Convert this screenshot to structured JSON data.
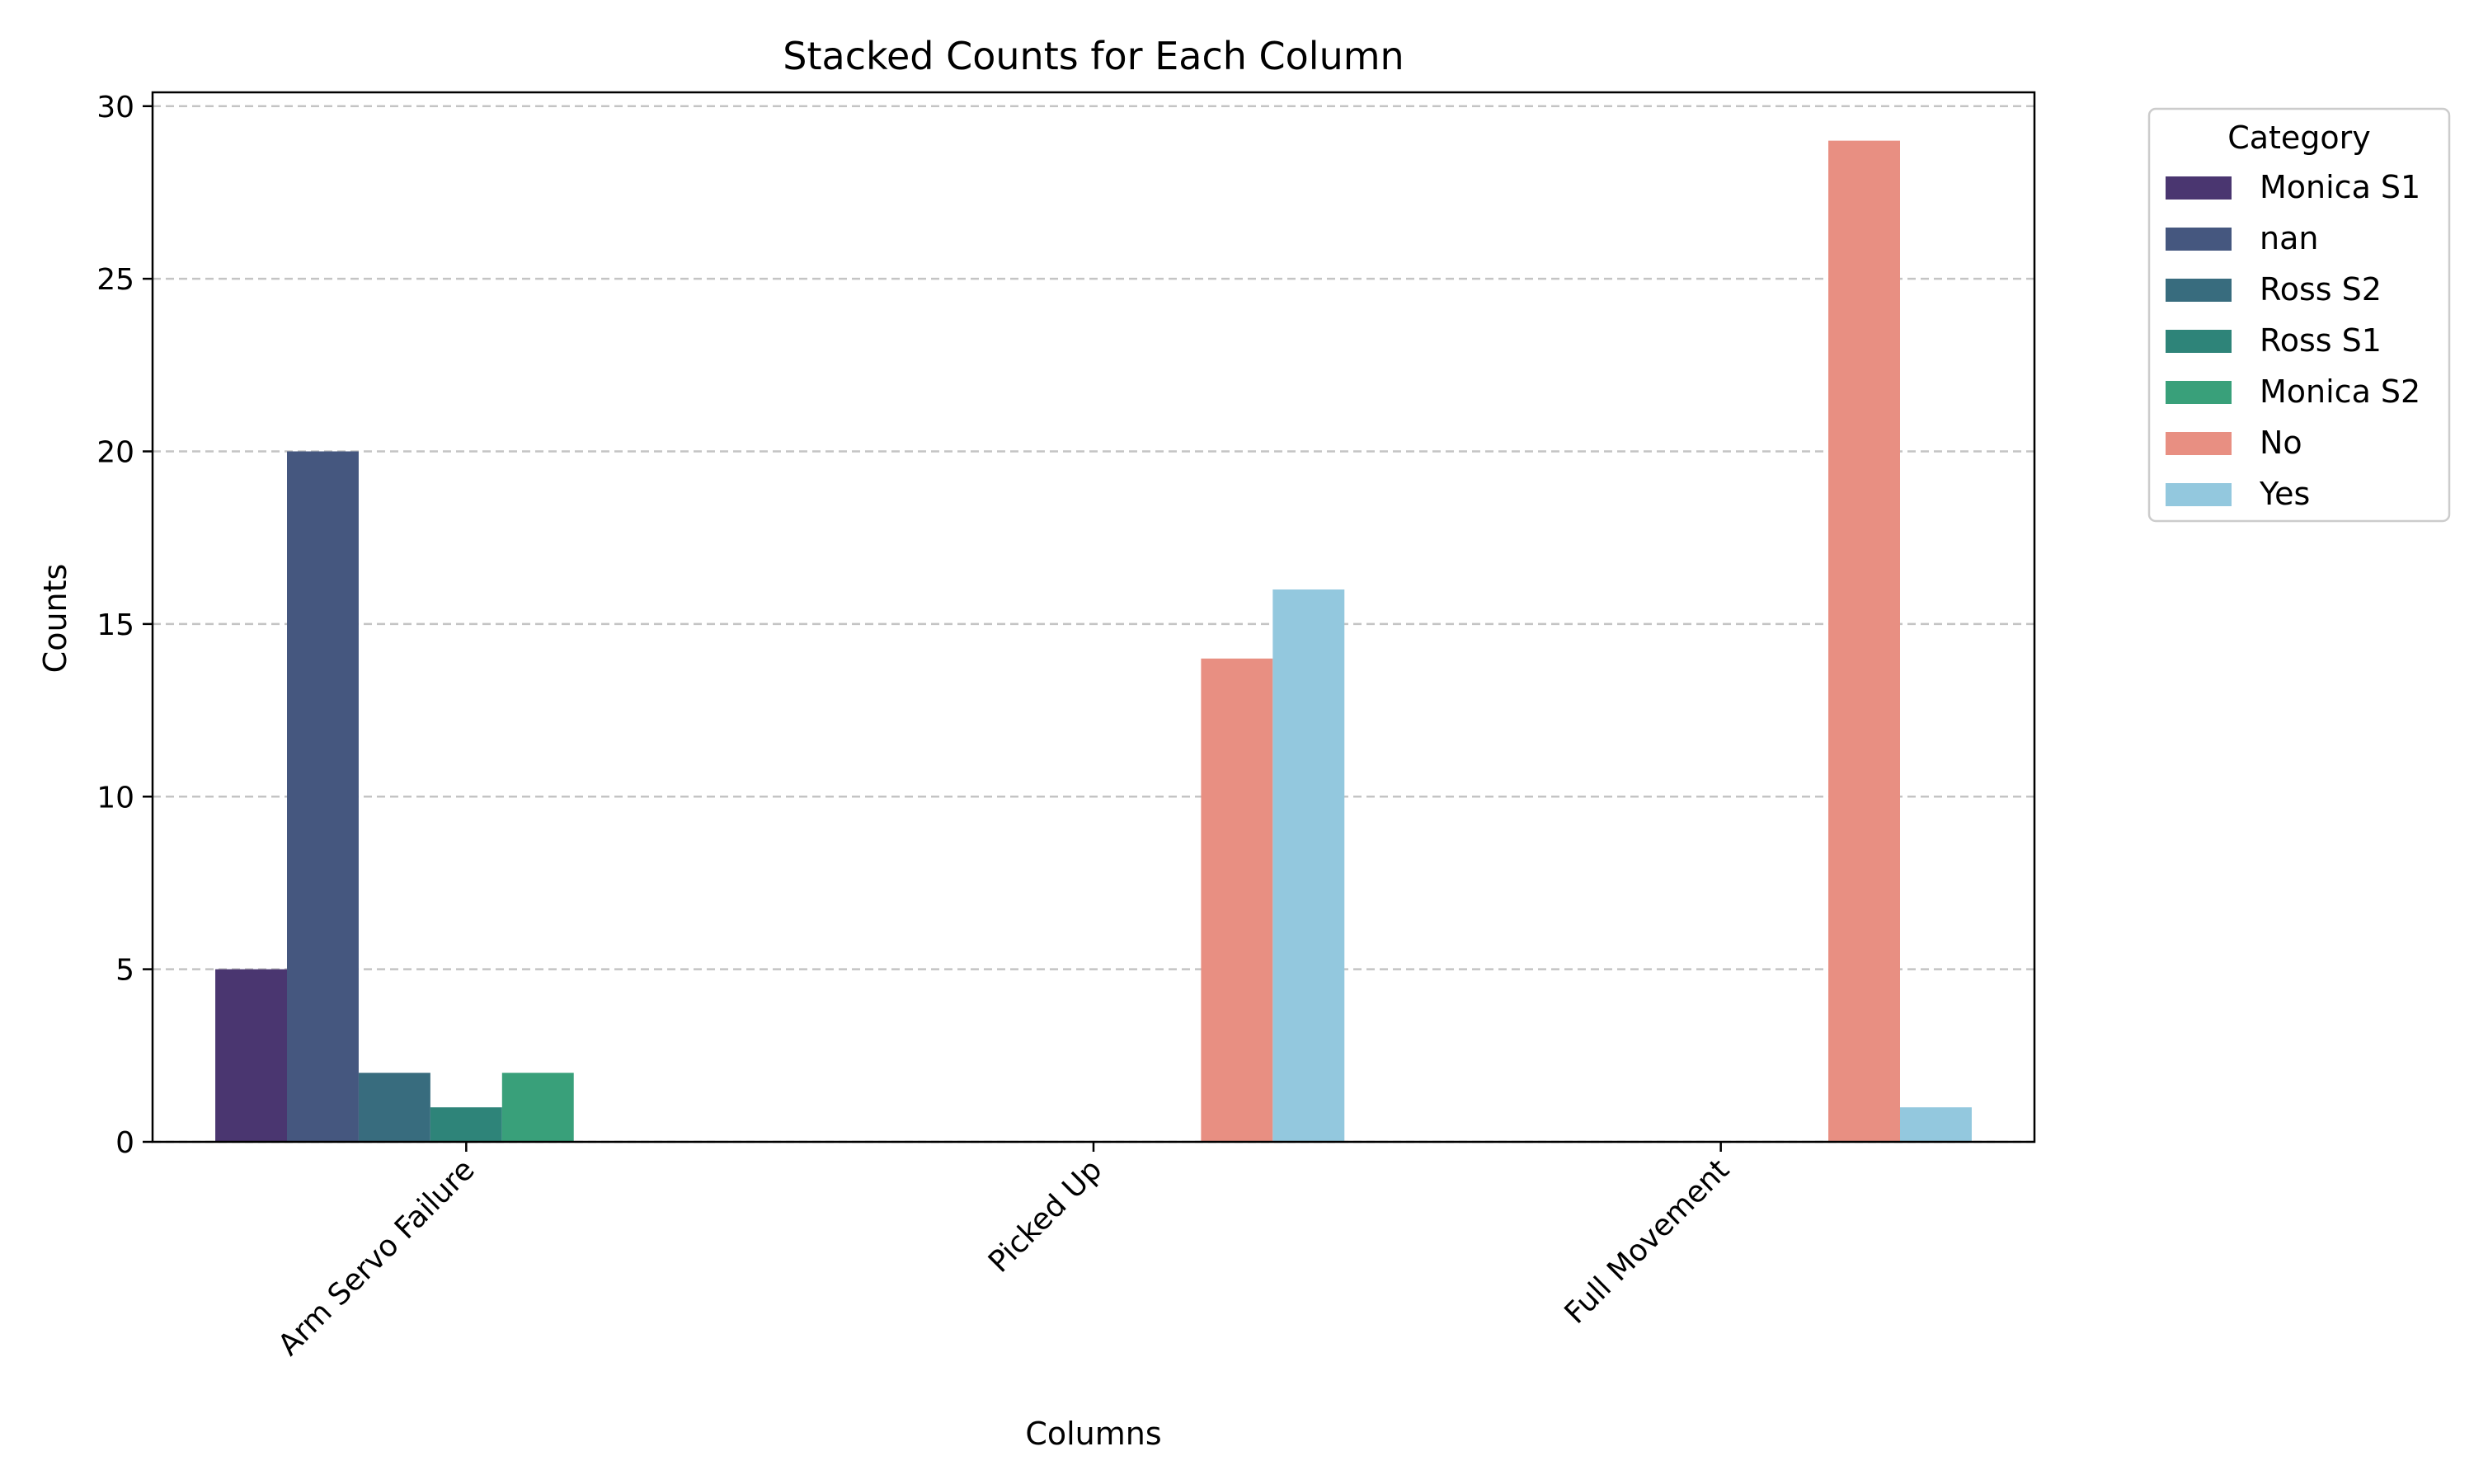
{
  "chart_data": {
    "type": "bar",
    "title": "Stacked Counts for Each Column",
    "xlabel": "Columns",
    "ylabel": "Counts",
    "categories": [
      "Arm Servo Failure",
      "Picked Up",
      "Full Movement"
    ],
    "ylim": [
      0,
      30.4
    ],
    "yticks": [
      0,
      5,
      10,
      15,
      20,
      25,
      30
    ],
    "grid": "y-dashed",
    "legend": {
      "title": "Category",
      "placement": "outside-top-right"
    },
    "series": [
      {
        "name": "Monica S1",
        "color": "#4a3670",
        "values": [
          5,
          0,
          0
        ]
      },
      {
        "name": "nan",
        "color": "#45577f",
        "values": [
          20,
          0,
          0
        ]
      },
      {
        "name": "Ross S2",
        "color": "#386c7e",
        "values": [
          2,
          0,
          0
        ]
      },
      {
        "name": "Ross S1",
        "color": "#2e8479",
        "values": [
          1,
          0,
          0
        ]
      },
      {
        "name": "Monica S2",
        "color": "#39a07a",
        "values": [
          2,
          0,
          0
        ]
      },
      {
        "name": "No",
        "color": "#e88f82",
        "values": [
          0,
          14,
          29
        ]
      },
      {
        "name": "Yes",
        "color": "#93c8de",
        "values": [
          0,
          16,
          1
        ]
      }
    ]
  }
}
